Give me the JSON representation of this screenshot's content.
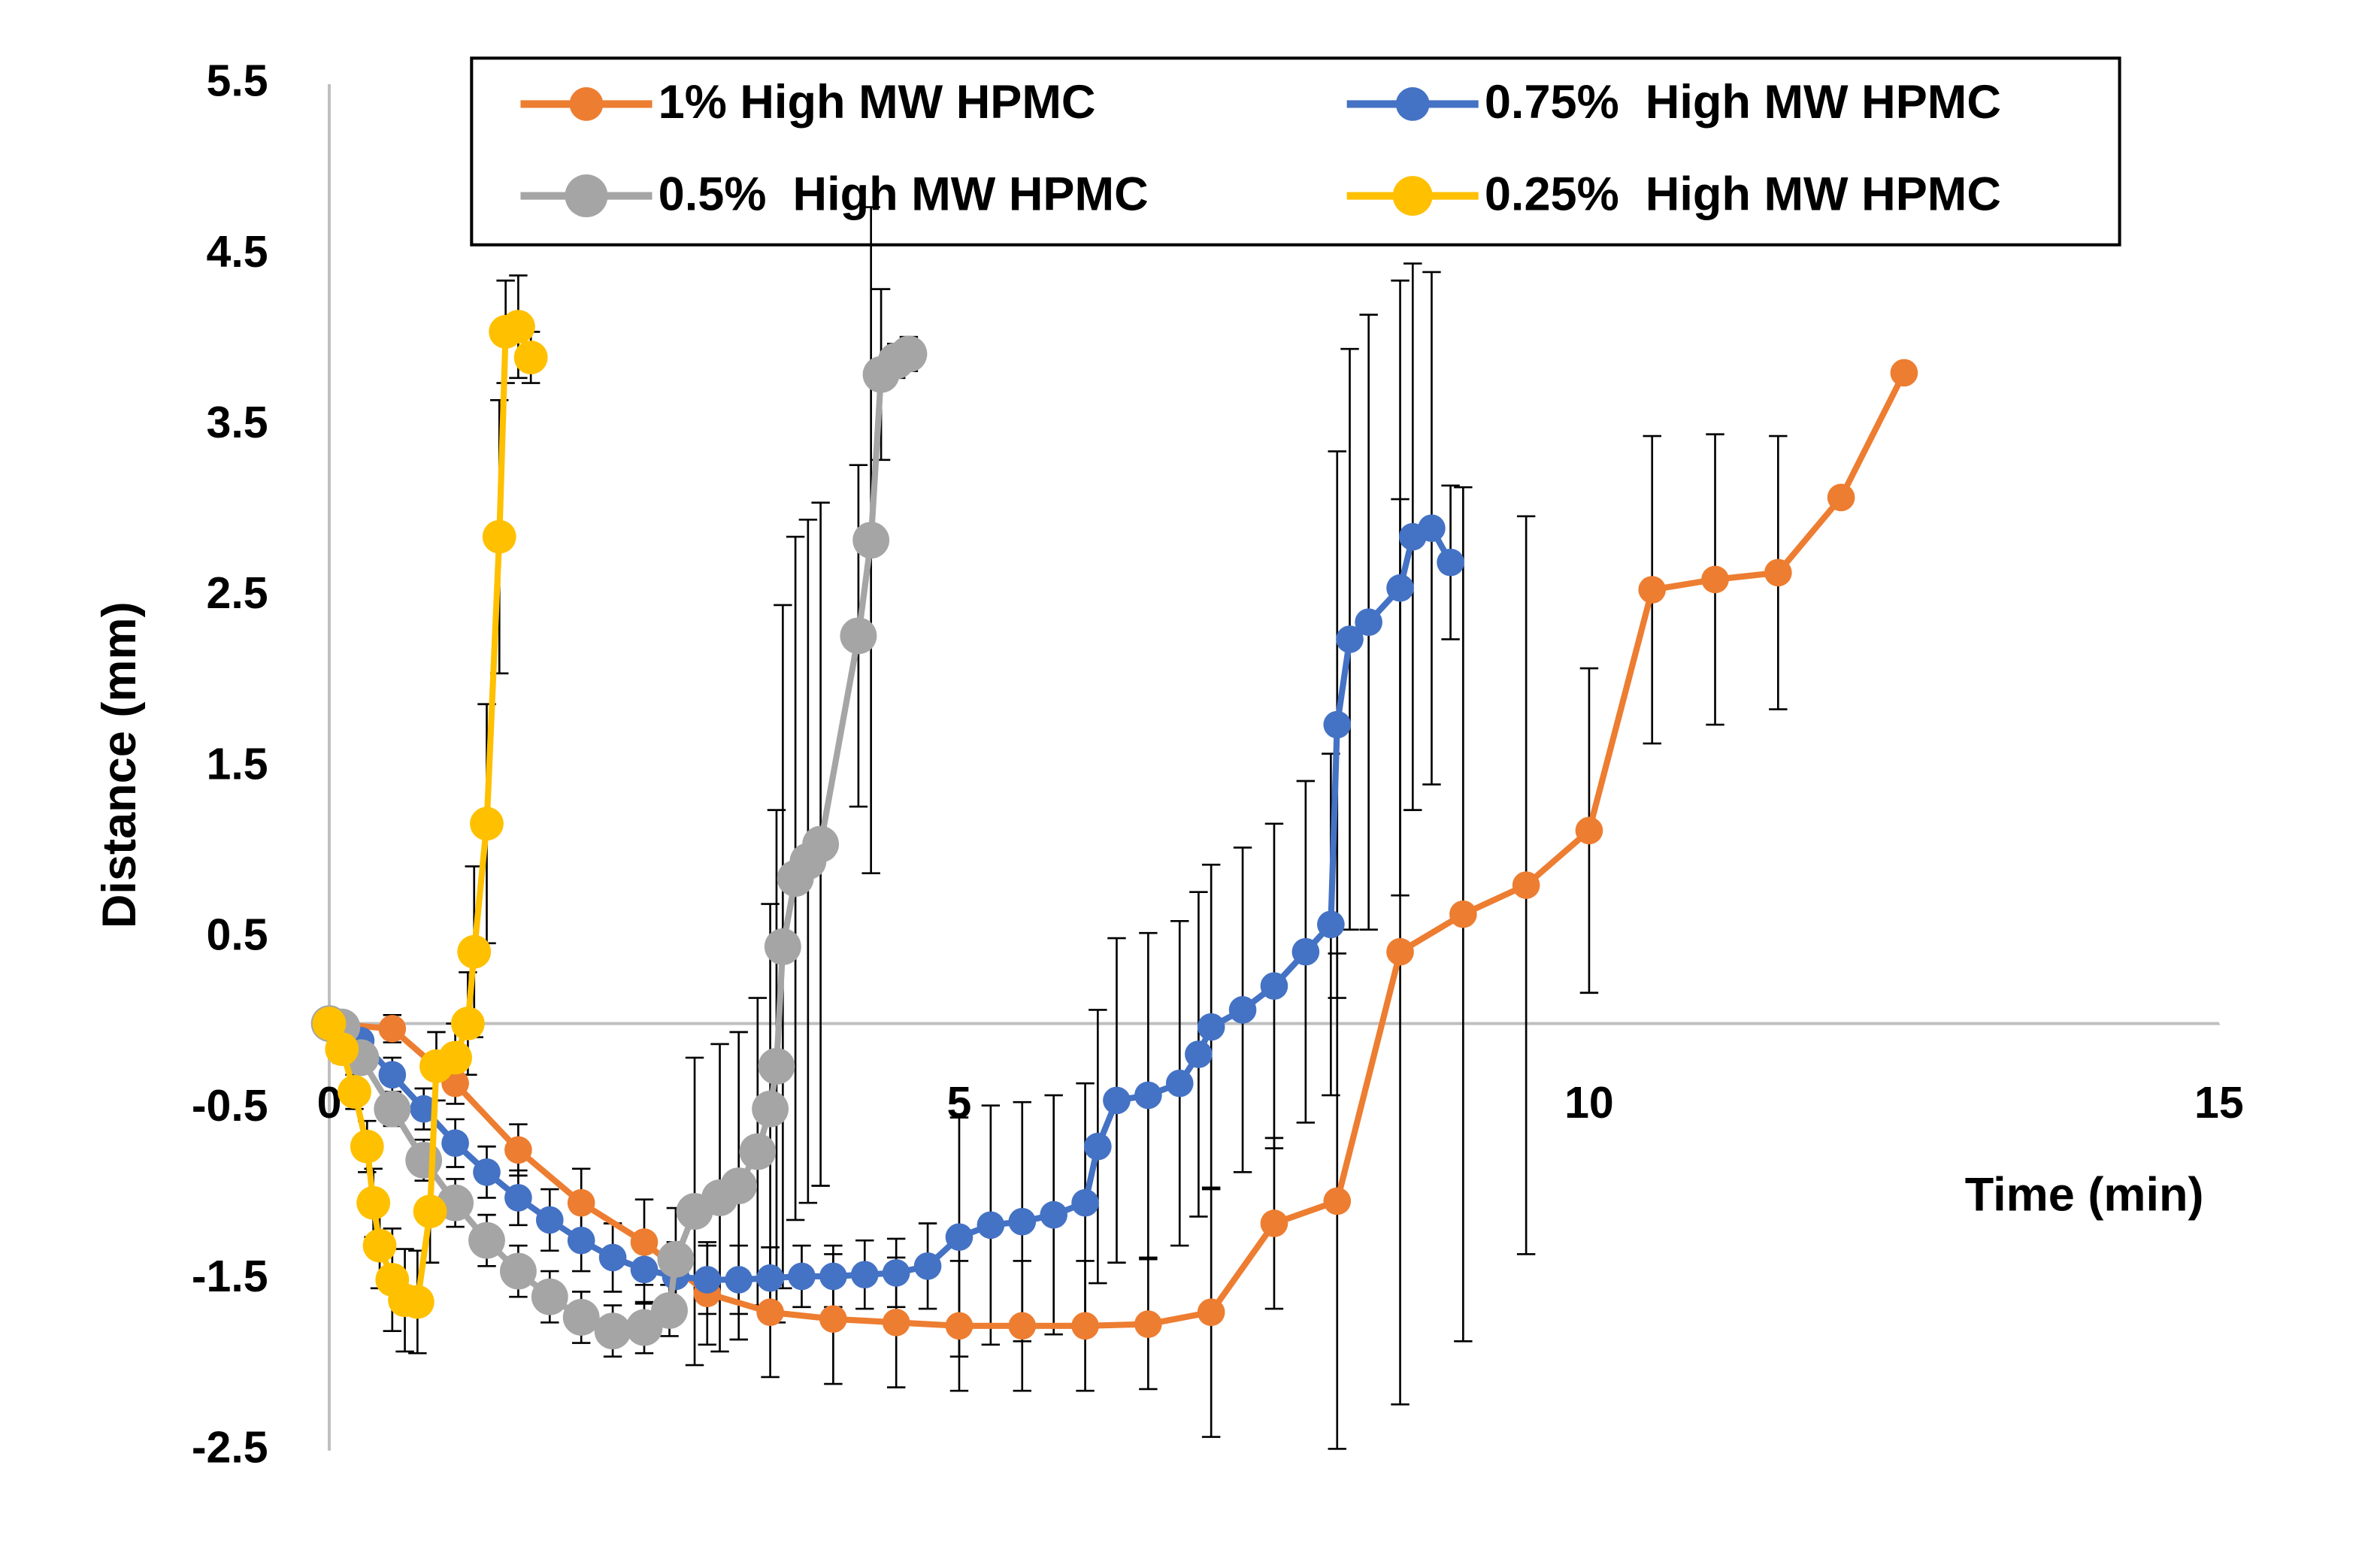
{
  "chart_data": {
    "type": "line",
    "xlabel": "Time (min)",
    "ylabel": "Distance (mm)",
    "xlim": [
      0,
      15
    ],
    "ylim": [
      -2.5,
      5.5
    ],
    "xticks": [
      0,
      5,
      10,
      15
    ],
    "yticks": [
      -2.5,
      -1.5,
      -0.5,
      0.5,
      1.5,
      2.5,
      3.5,
      4.5,
      5.5
    ],
    "legend": "top",
    "series": [
      {
        "name": "1% High MW HPMC",
        "color": "#ed7d31",
        "x": [
          0,
          0.5,
          1,
          1.5,
          2,
          2.5,
          3,
          3.5,
          4,
          4.5,
          5,
          5.5,
          6,
          6.5,
          7,
          7.5,
          8,
          8.5,
          9,
          9.5,
          10,
          10.5,
          11,
          11.5,
          12,
          12.5
        ],
        "values": [
          0,
          -0.03,
          -0.35,
          -0.74,
          -1.05,
          -1.28,
          -1.58,
          -1.69,
          -1.73,
          -1.75,
          -1.77,
          -1.77,
          -1.77,
          -1.76,
          -1.69,
          -1.17,
          -1.04,
          0.42,
          0.64,
          0.81,
          1.13,
          2.54,
          2.6,
          2.64,
          3.08,
          3.81
        ],
        "errors": [
          0.05,
          0.08,
          0.12,
          0.15,
          0.2,
          0.25,
          0.3,
          0.38,
          0.38,
          0.38,
          0.38,
          0.38,
          0.38,
          0.38,
          0.73,
          0.5,
          1.45,
          2.65,
          2.5,
          2.16,
          0.95,
          0.9,
          0.85,
          0.8,
          0.05,
          0.05
        ]
      },
      {
        "name": "0.75%  High MW HPMC",
        "color": "#4472c4",
        "x": [
          0,
          0.25,
          0.5,
          0.75,
          1,
          1.25,
          1.5,
          1.75,
          2,
          2.25,
          2.5,
          2.75,
          3,
          3.25,
          3.5,
          3.75,
          4,
          4.25,
          4.5,
          4.75,
          5,
          5.25,
          5.5,
          5.75,
          6,
          6.1,
          6.25,
          6.5,
          6.75,
          6.9,
          7,
          7.25,
          7.5,
          7.75,
          7.95,
          8,
          8.1,
          8.25,
          8.5,
          8.6,
          8.75,
          8.9
        ],
        "values": [
          0,
          -0.1,
          -0.3,
          -0.5,
          -0.7,
          -0.87,
          -1.02,
          -1.15,
          -1.27,
          -1.37,
          -1.44,
          -1.48,
          -1.5,
          -1.5,
          -1.49,
          -1.48,
          -1.48,
          -1.47,
          -1.46,
          -1.42,
          -1.25,
          -1.18,
          -1.16,
          -1.12,
          -1.05,
          -0.72,
          -0.45,
          -0.42,
          -0.35,
          -0.18,
          -0.02,
          0.08,
          0.22,
          0.42,
          0.58,
          1.75,
          2.25,
          2.35,
          2.55,
          2.85,
          2.9,
          2.7
        ],
        "errors": [
          0.05,
          0.08,
          0.1,
          0.12,
          0.14,
          0.15,
          0.16,
          0.18,
          0.18,
          0.2,
          0.2,
          0.2,
          0.2,
          0.2,
          0.18,
          0.18,
          0.18,
          0.2,
          0.2,
          0.25,
          0.7,
          0.7,
          0.7,
          0.7,
          0.7,
          0.8,
          0.95,
          0.95,
          0.95,
          0.95,
          0.95,
          0.95,
          0.95,
          1.0,
          1.0,
          1.6,
          1.7,
          1.8,
          1.8,
          1.6,
          1.5,
          0.45
        ]
      },
      {
        "name": "0.5%  High MW HPMC",
        "color": "#a5a5a5",
        "x": [
          0,
          0.1,
          0.25,
          0.5,
          0.75,
          1,
          1.25,
          1.5,
          1.75,
          2,
          2.25,
          2.5,
          2.7,
          2.75,
          2.9,
          3.1,
          3.25,
          3.4,
          3.5,
          3.55,
          3.6,
          3.7,
          3.8,
          3.9,
          4.2,
          4.3,
          4.38,
          4.5,
          4.6
        ],
        "values": [
          0,
          -0.02,
          -0.2,
          -0.5,
          -0.8,
          -1.05,
          -1.27,
          -1.45,
          -1.6,
          -1.72,
          -1.8,
          -1.78,
          -1.68,
          -1.38,
          -1.1,
          -1.02,
          -0.95,
          -0.75,
          -0.5,
          -0.25,
          0.45,
          0.85,
          0.95,
          1.05,
          2.27,
          2.83,
          3.8,
          3.88,
          3.92
        ],
        "errors": [
          0.05,
          0.05,
          0.08,
          0.1,
          0.12,
          0.14,
          0.15,
          0.15,
          0.15,
          0.15,
          0.15,
          0.15,
          0.15,
          0.3,
          0.9,
          0.9,
          0.9,
          0.9,
          1.2,
          1.5,
          2.0,
          2.0,
          2.0,
          2.0,
          1.0,
          1.95,
          0.5,
          0.1,
          0.1
        ]
      },
      {
        "name": "0.25%  High MW HPMC",
        "color": "#ffc000",
        "x": [
          0,
          0.1,
          0.2,
          0.3,
          0.35,
          0.4,
          0.5,
          0.6,
          0.7,
          0.8,
          0.85,
          1,
          1.1,
          1.15,
          1.25,
          1.35,
          1.4,
          1.5,
          1.6
        ],
        "values": [
          0,
          -0.15,
          -0.4,
          -0.72,
          -1.05,
          -1.3,
          -1.5,
          -1.62,
          -1.63,
          -1.1,
          -0.25,
          -0.2,
          0,
          0.42,
          1.17,
          2.85,
          4.05,
          4.08,
          3.9
        ],
        "errors": [
          0.05,
          0.08,
          0.1,
          0.15,
          0.2,
          0.25,
          0.3,
          0.3,
          0.3,
          0.3,
          0.2,
          0.2,
          0.3,
          0.5,
          0.7,
          0.8,
          0.3,
          0.3,
          0.15
        ]
      }
    ]
  }
}
